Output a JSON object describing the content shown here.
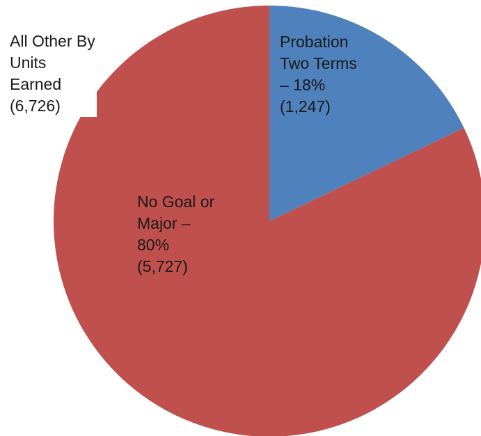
{
  "colors": {
    "probation": "#4f81bd",
    "no_goal": "#c0504d",
    "other": "#c0504d",
    "background": "#ffffff",
    "text": "#1a1a1a"
  },
  "chart_data": {
    "type": "pie",
    "title": "",
    "start_angle_deg": 0,
    "direction": "clockwise",
    "slices": [
      {
        "key": "probation",
        "value": 1247,
        "percent": 18,
        "label_lines": [
          "Probation",
          "Two Terms",
          "– 18%",
          "(1,247)"
        ]
      },
      {
        "key": "no_goal",
        "value": 5727,
        "percent": 80,
        "label_lines": [
          "No Goal or",
          "Major –",
          "80%",
          "(5,727)"
        ]
      },
      {
        "key": "other",
        "value": 6726,
        "label_lines": [
          "All Other By",
          "Units",
          "Earned",
          "(6,726)"
        ]
      }
    ]
  }
}
